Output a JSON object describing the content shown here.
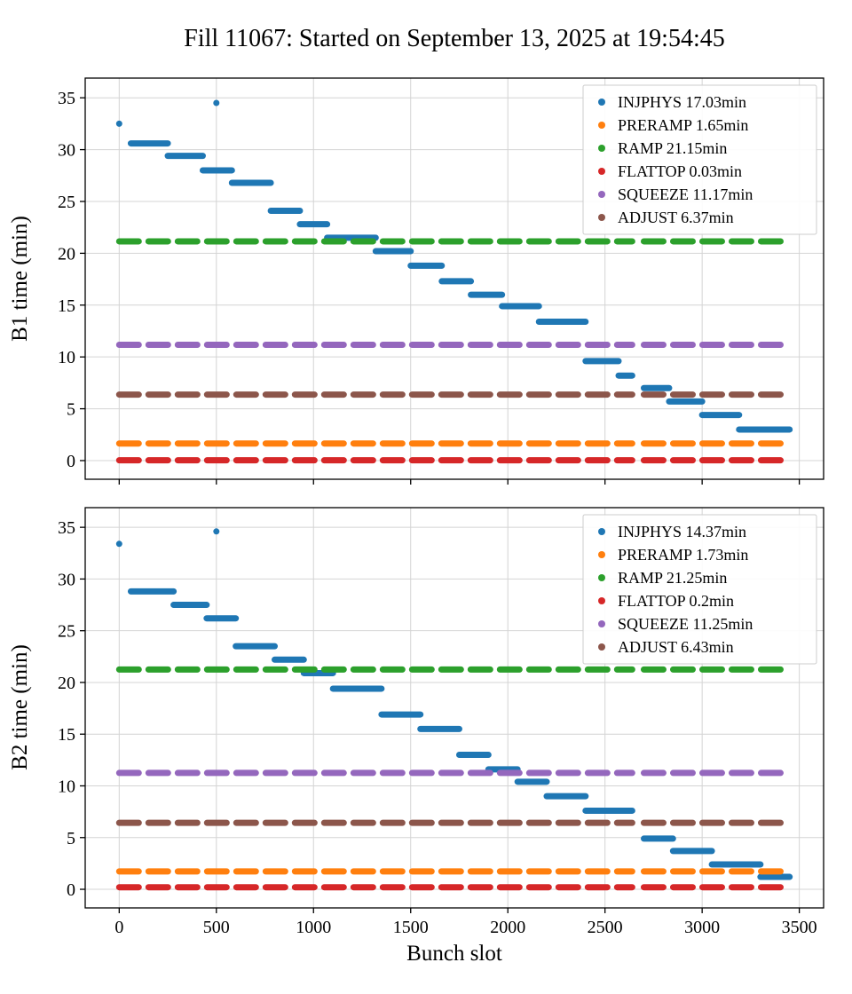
{
  "title": "Fill 11067: Started on September 13, 2025 at 19:54:45",
  "xlabel": "Bunch slot",
  "chart_data": [
    {
      "type": "scatter",
      "ylabel": "B1 time (min)",
      "xlim": [
        -175,
        3625
      ],
      "ylim": [
        -1.8,
        36.9
      ],
      "xticks": [
        0,
        500,
        1000,
        1500,
        2000,
        2500,
        3000,
        3500
      ],
      "yticks": [
        0,
        5,
        10,
        15,
        20,
        25,
        30,
        35
      ],
      "x_tick_labels_visible": false,
      "grid": true,
      "legend_position": "upper right",
      "series": [
        {
          "name": "INJPHYS 17.03min",
          "color": "#1f77b4",
          "style": "steps",
          "runs": [
            [
              60,
              250,
              30.6
            ],
            [
              250,
              430,
              29.4
            ],
            [
              430,
              580,
              28.0
            ],
            [
              580,
              780,
              26.8
            ],
            [
              780,
              930,
              24.1
            ],
            [
              930,
              1070,
              22.8
            ],
            [
              1070,
              1320,
              21.5
            ],
            [
              1320,
              1500,
              20.2
            ],
            [
              1500,
              1660,
              18.8
            ],
            [
              1660,
              1810,
              17.3
            ],
            [
              1810,
              1970,
              16.0
            ],
            [
              1970,
              2160,
              14.9
            ],
            [
              2160,
              2400,
              13.4
            ],
            [
              2400,
              2570,
              9.6
            ],
            [
              2570,
              2640,
              8.2
            ],
            [
              2700,
              2830,
              7.0
            ],
            [
              2830,
              3000,
              5.7
            ],
            [
              3000,
              3190,
              4.4
            ],
            [
              3190,
              3450,
              3.0
            ]
          ],
          "points": [
            [
              0,
              32.5
            ],
            [
              500,
              34.5
            ]
          ]
        },
        {
          "name": "PRERAMP 1.65min",
          "color": "#ff7f0e",
          "style": "train",
          "runs": [
            [
              0,
              2640,
              1.65
            ],
            [
              2700,
              3450,
              1.65
            ]
          ],
          "points": []
        },
        {
          "name": "RAMP 21.15min",
          "color": "#2ca02c",
          "style": "train",
          "runs": [
            [
              0,
              2640,
              21.15
            ],
            [
              2700,
              3450,
              21.15
            ]
          ],
          "points": []
        },
        {
          "name": "FLATTOP 0.03min",
          "color": "#d62728",
          "style": "train",
          "runs": [
            [
              0,
              2640,
              0.03
            ],
            [
              2700,
              3450,
              0.03
            ]
          ],
          "points": []
        },
        {
          "name": "SQUEEZE 11.17min",
          "color": "#9467bd",
          "style": "train",
          "runs": [
            [
              0,
              2640,
              11.17
            ],
            [
              2700,
              3450,
              11.17
            ]
          ],
          "points": []
        },
        {
          "name": "ADJUST 6.37min",
          "color": "#8c564b",
          "style": "train",
          "runs": [
            [
              0,
              2640,
              6.37
            ],
            [
              2700,
              3450,
              6.37
            ]
          ],
          "points": []
        }
      ]
    },
    {
      "type": "scatter",
      "ylabel": "B2 time (min)",
      "xlim": [
        -175,
        3625
      ],
      "ylim": [
        -1.8,
        36.9
      ],
      "xticks": [
        0,
        500,
        1000,
        1500,
        2000,
        2500,
        3000,
        3500
      ],
      "yticks": [
        0,
        5,
        10,
        15,
        20,
        25,
        30,
        35
      ],
      "x_tick_labels_visible": true,
      "grid": true,
      "legend_position": "upper right",
      "series": [
        {
          "name": "INJPHYS 14.37min",
          "color": "#1f77b4",
          "style": "steps",
          "runs": [
            [
              60,
              280,
              28.8
            ],
            [
              280,
              450,
              27.5
            ],
            [
              450,
              600,
              26.2
            ],
            [
              600,
              800,
              23.5
            ],
            [
              800,
              950,
              22.2
            ],
            [
              950,
              1100,
              20.9
            ],
            [
              1100,
              1350,
              19.4
            ],
            [
              1350,
              1550,
              16.9
            ],
            [
              1550,
              1750,
              15.5
            ],
            [
              1750,
              1900,
              13.0
            ],
            [
              1900,
              2050,
              11.6
            ],
            [
              2050,
              2200,
              10.4
            ],
            [
              2200,
              2400,
              9.0
            ],
            [
              2400,
              2640,
              7.6
            ],
            [
              2700,
              2850,
              4.9
            ],
            [
              2850,
              3050,
              3.7
            ],
            [
              3050,
              3300,
              2.4
            ],
            [
              3300,
              3450,
              1.2
            ]
          ],
          "points": [
            [
              0,
              33.4
            ],
            [
              500,
              34.6
            ]
          ]
        },
        {
          "name": "PRERAMP 1.73min",
          "color": "#ff7f0e",
          "style": "train",
          "runs": [
            [
              0,
              2640,
              1.73
            ],
            [
              2700,
              3450,
              1.73
            ]
          ],
          "points": []
        },
        {
          "name": "RAMP 21.25min",
          "color": "#2ca02c",
          "style": "train",
          "runs": [
            [
              0,
              2640,
              21.25
            ],
            [
              2700,
              3450,
              21.25
            ]
          ],
          "points": []
        },
        {
          "name": "FLATTOP 0.2min",
          "color": "#d62728",
          "style": "train",
          "runs": [
            [
              0,
              2640,
              0.2
            ],
            [
              2700,
              3450,
              0.2
            ]
          ],
          "points": []
        },
        {
          "name": "SQUEEZE 11.25min",
          "color": "#9467bd",
          "style": "train",
          "runs": [
            [
              0,
              2640,
              11.25
            ],
            [
              2700,
              3450,
              11.25
            ]
          ],
          "points": []
        },
        {
          "name": "ADJUST 6.43min",
          "color": "#8c564b",
          "style": "train",
          "runs": [
            [
              0,
              2640,
              6.43
            ],
            [
              2700,
              3450,
              6.43
            ]
          ],
          "points": []
        }
      ]
    }
  ]
}
